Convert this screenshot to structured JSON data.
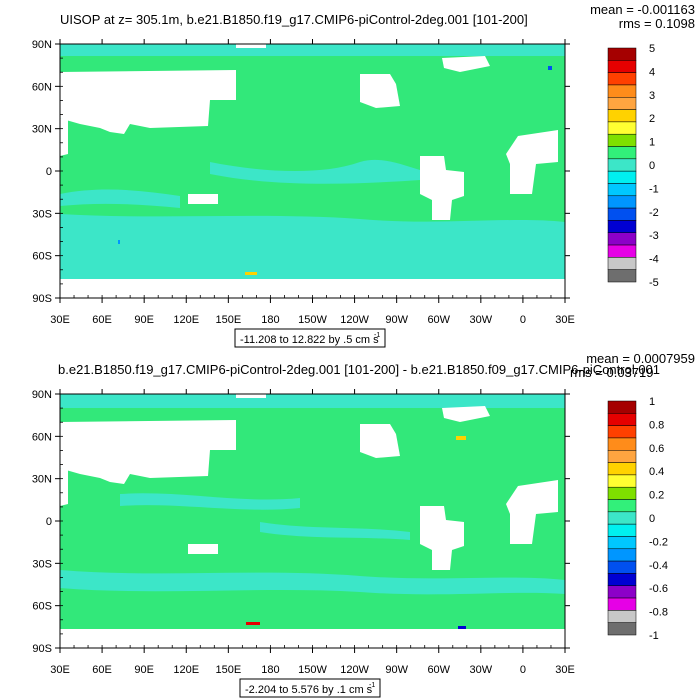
{
  "chart_data": [
    {
      "type": "heatmap",
      "title": "UISOP at z= 305.1m, b.e21.B1850.f19_g17.CMIP6-piControl-2deg.001 [101-200]",
      "stats": {
        "mean": "mean = -0.001163",
        "rms": "rms = 0.1098"
      },
      "range_label": "-11.208 to 12.822 by .5 cm s",
      "range_sup": "-1",
      "lat_ticks": [
        "90N",
        "60N",
        "30N",
        "0",
        "30S",
        "60S",
        "90S"
      ],
      "lon_ticks": [
        "30E",
        "60E",
        "90E",
        "120E",
        "150E",
        "180",
        "150W",
        "120W",
        "90W",
        "60W",
        "30W",
        "0",
        "30E"
      ],
      "xlim": [
        30,
        390
      ],
      "ylim": [
        -90,
        90
      ],
      "colorbar_labels": [
        "5",
        "4",
        "3",
        "2",
        "1",
        "0",
        "-1",
        "-2",
        "-3",
        "-4",
        "-5"
      ],
      "colorbar_colors": [
        "#a50000",
        "#e60000",
        "#ff4000",
        "#ff8c1a",
        "#ffa540",
        "#ffd200",
        "#ffff32",
        "#7fe000",
        "#32f07a",
        "#3ce6c8",
        "#00f0f0",
        "#00c8ff",
        "#0096ff",
        "#0050f0",
        "#0000d2",
        "#8c00c8",
        "#e600e6",
        "#c8c8c8",
        "#6e6e6e"
      ]
    },
    {
      "type": "heatmap",
      "title": "b.e21.B1850.f19_g17.CMIP6-piControl-2deg.001 [101-200] - b.e21.B1850.f09_g17.CMIP6-piControl.001",
      "stats": {
        "mean": "mean = 0.0007959",
        "rms": "rms = 0.03719"
      },
      "range_label": "-2.204 to 5.576 by .1 cm s",
      "range_sup": "-1",
      "lat_ticks": [
        "90N",
        "60N",
        "30N",
        "0",
        "30S",
        "60S",
        "90S"
      ],
      "lon_ticks": [
        "30E",
        "60E",
        "90E",
        "120E",
        "150E",
        "180",
        "150W",
        "120W",
        "90W",
        "60W",
        "30W",
        "0",
        "30E"
      ],
      "xlim": [
        30,
        390
      ],
      "ylim": [
        -90,
        90
      ],
      "colorbar_labels": [
        "1",
        "0.8",
        "0.6",
        "0.4",
        "0.2",
        "0",
        "-0.2",
        "-0.4",
        "-0.6",
        "-0.8",
        "-1"
      ],
      "colorbar_colors": [
        "#a50000",
        "#e60000",
        "#ff4000",
        "#ff8c1a",
        "#ffa540",
        "#ffd200",
        "#ffff32",
        "#7fe000",
        "#32f07a",
        "#3ce6c8",
        "#00f0f0",
        "#00c8ff",
        "#0096ff",
        "#0050f0",
        "#0000d2",
        "#8c00c8",
        "#e600e6",
        "#c8c8c8",
        "#6e6e6e"
      ]
    }
  ],
  "colors": {
    "ocean_main": "#32e87a",
    "ocean_low": "#33e6c8",
    "land": "#ffffff",
    "frame": "#000000"
  }
}
